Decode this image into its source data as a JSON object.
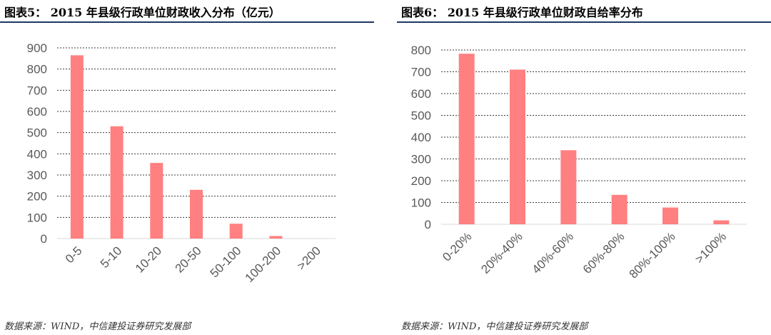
{
  "charts": [
    {
      "title": "图表5：  2015 年县级行政单位财政收入分布（亿元）",
      "source": "数据来源：WIND，中信建投证券研究发展部"
    },
    {
      "title": "图表6：  2015 年县级行政单位财政自给率分布",
      "source": "数据来源：WIND，中信建投证券研究发展部"
    }
  ],
  "chart_data": [
    {
      "type": "bar",
      "categories": [
        "0-5",
        "5-10",
        "10-20",
        "20-50",
        "50-100",
        "100-200",
        ">200"
      ],
      "values": [
        865,
        530,
        357,
        230,
        70,
        12,
        0
      ],
      "ylim": [
        0,
        900
      ],
      "yticks": [
        0,
        100,
        200,
        300,
        400,
        500,
        600,
        700,
        800,
        900
      ],
      "grid": true,
      "bar_color": "#ff8080"
    },
    {
      "type": "bar",
      "categories": [
        "0-20%",
        "20%-40%",
        "40%-60%",
        "60%-80%",
        "80%-100%",
        ">100%"
      ],
      "values": [
        783,
        710,
        340,
        135,
        77,
        18
      ],
      "ylim": [
        0,
        800
      ],
      "yticks": [
        0,
        100,
        200,
        300,
        400,
        500,
        600,
        700,
        800
      ],
      "grid": true,
      "bar_color": "#ff8080"
    }
  ]
}
